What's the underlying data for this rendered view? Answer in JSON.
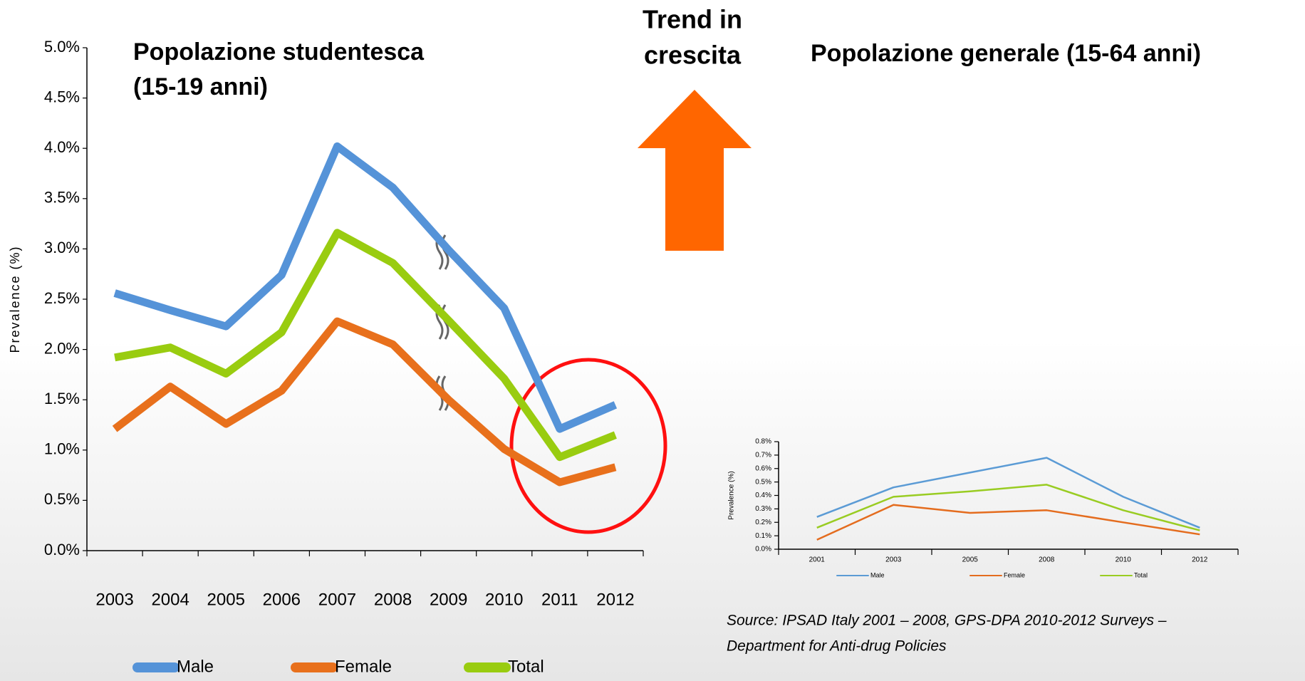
{
  "heading": [
    "Trend in",
    "crescita"
  ],
  "source": [
    "Source: IPSAD Italy 2001 – 2008, GPS-DPA 2010-2012 Surveys –",
    "Department for Anti-drug Policies"
  ],
  "chart_data": [
    {
      "type": "line",
      "title": [
        "Popolazione studentesca",
        "(15-19 anni)"
      ],
      "y_label": "Prevalence (%)",
      "categories": [
        "2003",
        "2004",
        "2005",
        "2006",
        "2007",
        "2008",
        "2009",
        "2010",
        "2011",
        "2012"
      ],
      "series": [
        {
          "name": "Male",
          "color": "#5593d8",
          "values": [
            2.56,
            2.39,
            2.23,
            2.74,
            4.02,
            3.61,
            2.99,
            2.41,
            1.21,
            1.45
          ]
        },
        {
          "name": "Female",
          "color": "#e8701c",
          "values": [
            1.21,
            1.63,
            1.26,
            1.59,
            2.28,
            2.05,
            1.5,
            1.01,
            0.68,
            0.83
          ]
        },
        {
          "name": "Total",
          "color": "#99cc10",
          "values": [
            1.92,
            2.02,
            1.76,
            2.17,
            3.16,
            2.86,
            2.29,
            1.71,
            0.93,
            1.15
          ]
        }
      ],
      "ylim": [
        0,
        5
      ],
      "yticks": [
        {
          "value": 0,
          "label": "0.0%"
        },
        {
          "value": 0.5,
          "label": "0.5%"
        },
        {
          "value": 1,
          "label": "1.0%"
        },
        {
          "value": 1.5,
          "label": "1.5%"
        },
        {
          "value": 2,
          "label": "2.0%"
        },
        {
          "value": 2.5,
          "label": "2.5%"
        },
        {
          "value": 3,
          "label": "3.0%"
        },
        {
          "value": 3.5,
          "label": "3.5%"
        },
        {
          "value": 4,
          "label": "4.0%"
        },
        {
          "value": 4.5,
          "label": "4.5%"
        },
        {
          "value": 5,
          "label": "5.0%"
        }
      ],
      "legend": "bottom"
    },
    {
      "type": "line",
      "title": [
        "Popolazione generale (15-64 anni)"
      ],
      "y_label": "Prevalence (%)",
      "categories": [
        "2001",
        "2003",
        "2005",
        "2008",
        "2010",
        "2012"
      ],
      "series": [
        {
          "name": "Male",
          "color": "#5b9bd5",
          "values": [
            0.24,
            0.46,
            0.57,
            0.68,
            0.39,
            0.16
          ]
        },
        {
          "name": "Female",
          "color": "#e46c1e",
          "values": [
            0.07,
            0.33,
            0.27,
            0.29,
            0.2,
            0.11
          ]
        },
        {
          "name": "Total",
          "color": "#99cc22",
          "values": [
            0.16,
            0.39,
            0.43,
            0.48,
            0.29,
            0.14
          ]
        }
      ],
      "ylim": [
        0,
        0.8
      ],
      "yticks": [
        {
          "value": 0,
          "label": "0.0%"
        },
        {
          "value": 0.1,
          "label": "0.1%"
        },
        {
          "value": 0.2,
          "label": "0.2%"
        },
        {
          "value": 0.3,
          "label": "0.3%"
        },
        {
          "value": 0.4,
          "label": "0.4%"
        },
        {
          "value": 0.5,
          "label": "0.5%"
        },
        {
          "value": 0.6,
          "label": "0.6%"
        },
        {
          "value": 0.7,
          "label": "0.7%"
        },
        {
          "value": 0.8,
          "label": "0.8%"
        }
      ],
      "legend": "bottom"
    }
  ]
}
